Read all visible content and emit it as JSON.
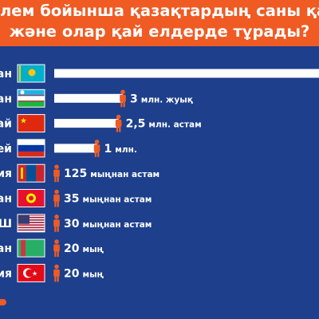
{
  "header": {
    "title_line_1": "лем бойынша қазақтардың саны қанша",
    "title_line_2": "және олар қай елдерде тұрады?"
  },
  "colors": {
    "background": "#1d3f8c",
    "header_background": "#ef5b23",
    "bar": "#ffffff",
    "person_icon": "#ef5b23",
    "label_text": "#ffffff"
  },
  "chart_data": {
    "type": "bar",
    "orientation": "horizontal",
    "title": "лем бойынша қазақтардың саны қанша және олар қай елдерде тұрады?",
    "categories": [
      "ан",
      "ан",
      "ай",
      "ей",
      "ия",
      "ан",
      "Ш",
      "ан",
      "ия"
    ],
    "flags": [
      "kazakhstan-flag-icon",
      "uzbekistan-flag-icon",
      "china-flag-icon",
      "russia-flag-icon",
      "mongolia-flag-icon",
      "kyrgyzstan-flag-icon",
      "usa-flag-icon",
      "turkmenistan-flag-icon",
      "turkey-flag-icon"
    ],
    "values": [
      null,
      3000000,
      2500000,
      1000000,
      125000,
      35000,
      30000,
      20000,
      20000
    ],
    "value_labels": [
      {
        "number": "",
        "text": ""
      },
      {
        "number": "3",
        "text": "млн. жуық"
      },
      {
        "number": "2,5",
        "text": "млн. астам"
      },
      {
        "number": "1",
        "text": "млн."
      },
      {
        "number": "125",
        "text": "мыңнан астам"
      },
      {
        "number": "35",
        "text": "мыңнан астам"
      },
      {
        "number": "30",
        "text": "мыңнан астам"
      },
      {
        "number": "20",
        "text": "мың"
      },
      {
        "number": "20",
        "text": "мың"
      }
    ],
    "first_bar_extends_off_image": true,
    "xlabel": "",
    "ylabel": ""
  }
}
